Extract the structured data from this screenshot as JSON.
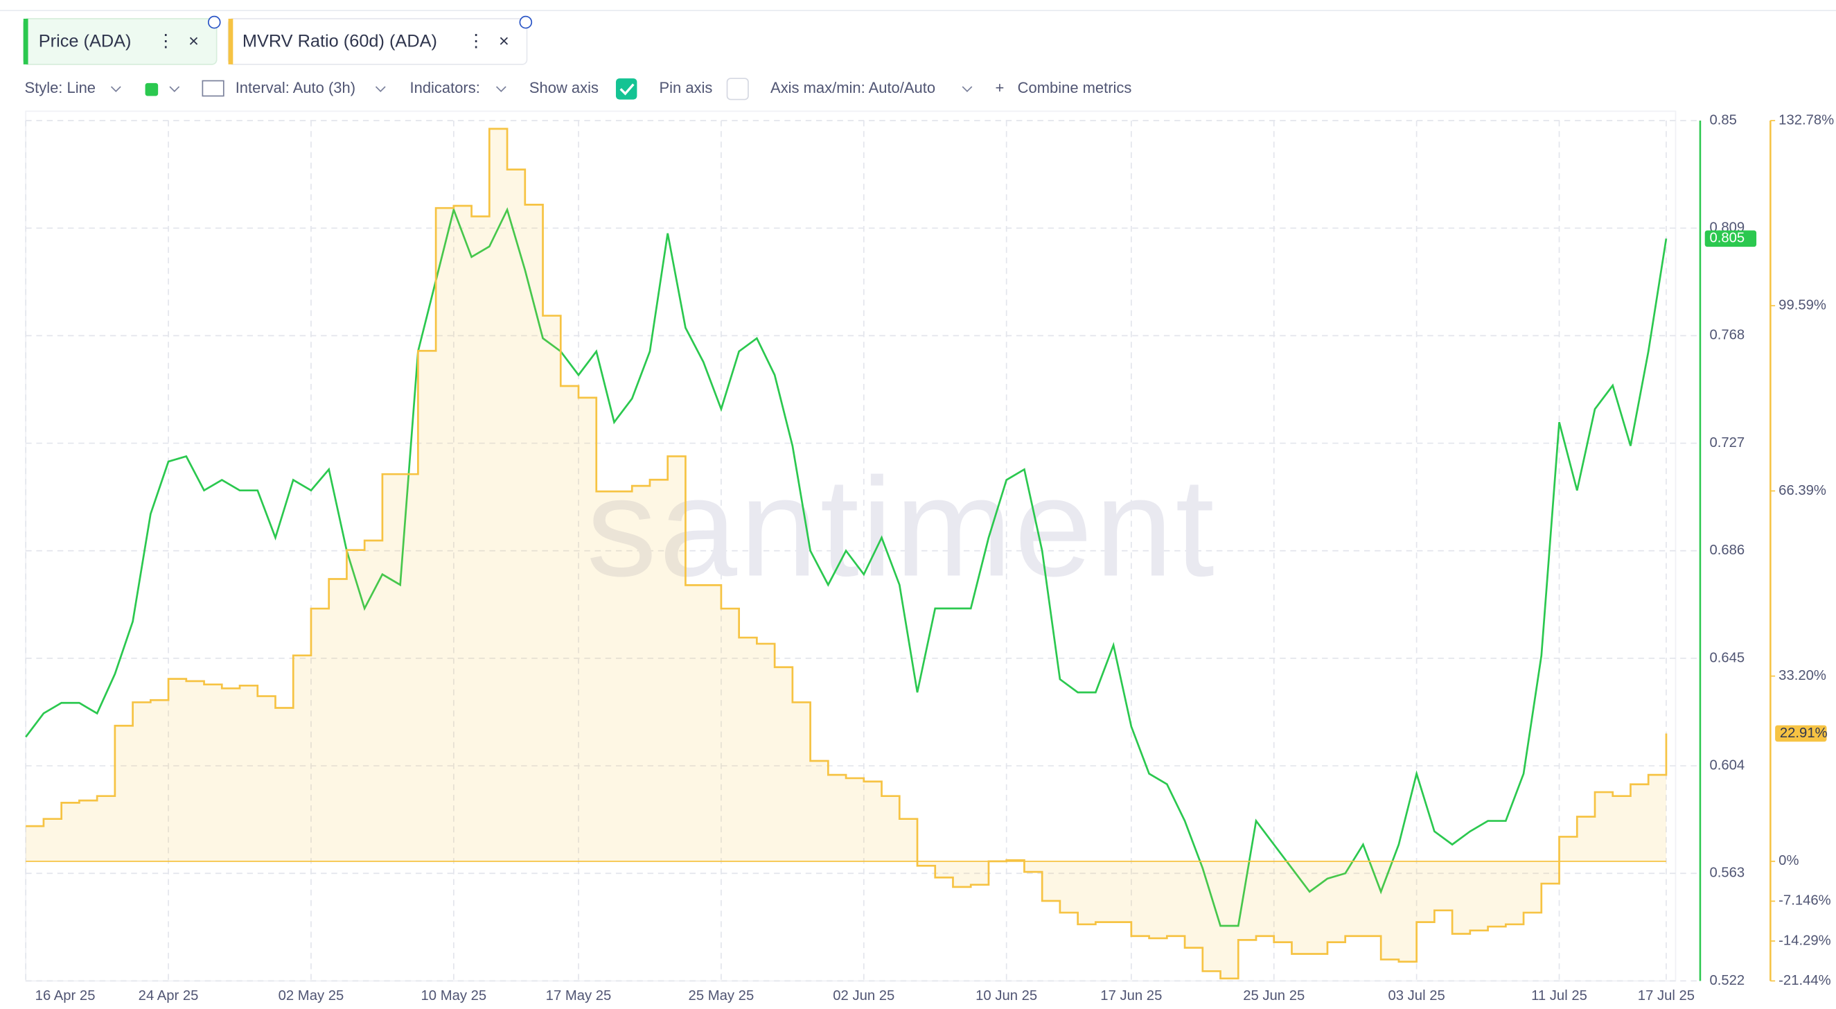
{
  "ui": {
    "toolbar": {
      "style": "Style: Line",
      "interval": "Interval: Auto (3h)",
      "indicators": "Indicators:",
      "show_axis": "Show axis",
      "pin_axis": "Pin axis",
      "axis_range": "Axis max/min: Auto/Auto",
      "combine": "Combine metrics"
    },
    "watermark": "santiment"
  },
  "chart_data": {
    "type": "line",
    "grid": true,
    "categories": [
      "16 Apr 25",
      null,
      null,
      null,
      null,
      null,
      null,
      null,
      "24 Apr 25",
      null,
      null,
      null,
      null,
      null,
      null,
      null,
      "02 May 25",
      null,
      null,
      null,
      null,
      null,
      null,
      null,
      "10 May 25",
      null,
      null,
      null,
      null,
      null,
      null,
      "17 May 25",
      null,
      null,
      null,
      null,
      null,
      null,
      null,
      "25 May 25",
      null,
      null,
      null,
      null,
      null,
      null,
      null,
      "02 Jun 25",
      null,
      null,
      null,
      null,
      null,
      null,
      null,
      "10 Jun 25",
      null,
      null,
      null,
      null,
      null,
      null,
      "17 Jun 25",
      null,
      null,
      null,
      null,
      null,
      null,
      null,
      "25 Jun 25",
      null,
      null,
      null,
      null,
      null,
      null,
      null,
      "03 Jul 25",
      null,
      null,
      null,
      null,
      null,
      null,
      null,
      "11 Jul 25",
      null,
      null,
      null,
      null,
      null,
      "17 Jul 25"
    ],
    "ylim": [
      0.522,
      0.85
    ],
    "yticks": [
      0.522,
      0.563,
      0.604,
      0.645,
      0.686,
      0.727,
      0.768,
      0.809,
      0.85
    ],
    "y2lim": [
      -21.44,
      132.78
    ],
    "y2ticks": [
      {
        "value": -21.44,
        "label": "-21.44%"
      },
      {
        "value": -14.29,
        "label": "-14.29%"
      },
      {
        "value": -7.146,
        "label": "-7.146%"
      },
      {
        "value": 0,
        "label": "0%"
      },
      {
        "value": 33.2,
        "label": "33.20%"
      },
      {
        "value": 66.39,
        "label": "66.39%"
      },
      {
        "value": 99.59,
        "label": "99.59%"
      },
      {
        "value": 132.78,
        "label": "132.78%"
      }
    ],
    "series": [
      {
        "name": "Price (ADA)",
        "color": "#2bc84f",
        "axis": "y",
        "values": [
          0.615,
          0.624,
          0.628,
          0.628,
          0.624,
          0.639,
          0.659,
          0.7,
          0.72,
          0.722,
          0.709,
          0.713,
          0.709,
          0.709,
          0.691,
          0.713,
          0.709,
          0.717,
          0.686,
          0.664,
          0.677,
          0.673,
          0.762,
          0.789,
          0.816,
          0.798,
          0.802,
          0.816,
          0.793,
          0.767,
          0.762,
          0.753,
          0.762,
          0.735,
          0.744,
          0.762,
          0.807,
          0.771,
          0.758,
          0.74,
          0.762,
          0.767,
          0.753,
          0.726,
          0.686,
          0.673,
          0.686,
          0.677,
          0.691,
          0.673,
          0.632,
          0.664,
          0.664,
          0.664,
          0.691,
          0.713,
          0.717,
          0.686,
          0.637,
          0.632,
          0.632,
          0.65,
          0.619,
          0.601,
          0.597,
          0.583,
          0.565,
          0.543,
          0.543,
          0.583,
          0.574,
          0.565,
          0.556,
          0.561,
          0.563,
          0.574,
          0.556,
          0.574,
          0.601,
          0.579,
          0.574,
          0.579,
          0.583,
          0.583,
          0.601,
          0.646,
          0.735,
          0.709,
          0.74,
          0.749,
          0.726,
          0.762,
          0.805
        ]
      },
      {
        "name": "MVRV Ratio (60d) (ADA)",
        "color": "#f6c343",
        "axis": "y2",
        "values": [
          6.3,
          7.6,
          10.5,
          10.9,
          11.7,
          24.3,
          28.5,
          28.9,
          32.7,
          32.3,
          31.7,
          31.0,
          31.5,
          29.6,
          27.5,
          36.9,
          45.3,
          50.6,
          55.8,
          57.5,
          69.4,
          69.4,
          91.5,
          117.1,
          117.5,
          115.6,
          131.3,
          124.0,
          117.7,
          97.8,
          85.2,
          83.1,
          66.3,
          66.3,
          67.3,
          68.4,
          72.6,
          49.5,
          49.5,
          45.3,
          40.1,
          39.0,
          34.8,
          28.5,
          18.0,
          15.5,
          14.9,
          14.3,
          11.7,
          7.6,
          -0.8,
          -2.9,
          -4.6,
          -4.2,
          0,
          0.2,
          -1.9,
          -7.1,
          -9.2,
          -11.3,
          -10.9,
          -10.9,
          -13.4,
          -13.8,
          -13.4,
          -15.5,
          -19.7,
          -21.0,
          -14.1,
          -13.4,
          -14.5,
          -16.6,
          -16.6,
          -14.5,
          -13.4,
          -13.4,
          -17.6,
          -18.0,
          -10.9,
          -8.8,
          -13.0,
          -12.4,
          -11.7,
          -11.3,
          -9.2,
          -4.0,
          4.4,
          8.0,
          12.4,
          11.7,
          13.8,
          15.5,
          22.91
        ],
        "value_labels": [
          null,
          null,
          null,
          null,
          null,
          null,
          null,
          null,
          null,
          null,
          null,
          null,
          null,
          null,
          null,
          null,
          null,
          null,
          null,
          null,
          null,
          null,
          null,
          null,
          null,
          null,
          null,
          null,
          null,
          null,
          null,
          null,
          null,
          null,
          null,
          null,
          null,
          null,
          null,
          null,
          null,
          null,
          null,
          null,
          null,
          null,
          null,
          null,
          null,
          null,
          null,
          null,
          null,
          null,
          null,
          null,
          null,
          null,
          null,
          null,
          null,
          null,
          null,
          null,
          null,
          null,
          null,
          null,
          null,
          null,
          null,
          null,
          null,
          null,
          null,
          null,
          null,
          null,
          null,
          null,
          null,
          null,
          null,
          null,
          null,
          null,
          null,
          null,
          null,
          null,
          null,
          null,
          "22.91%"
        ]
      }
    ]
  }
}
